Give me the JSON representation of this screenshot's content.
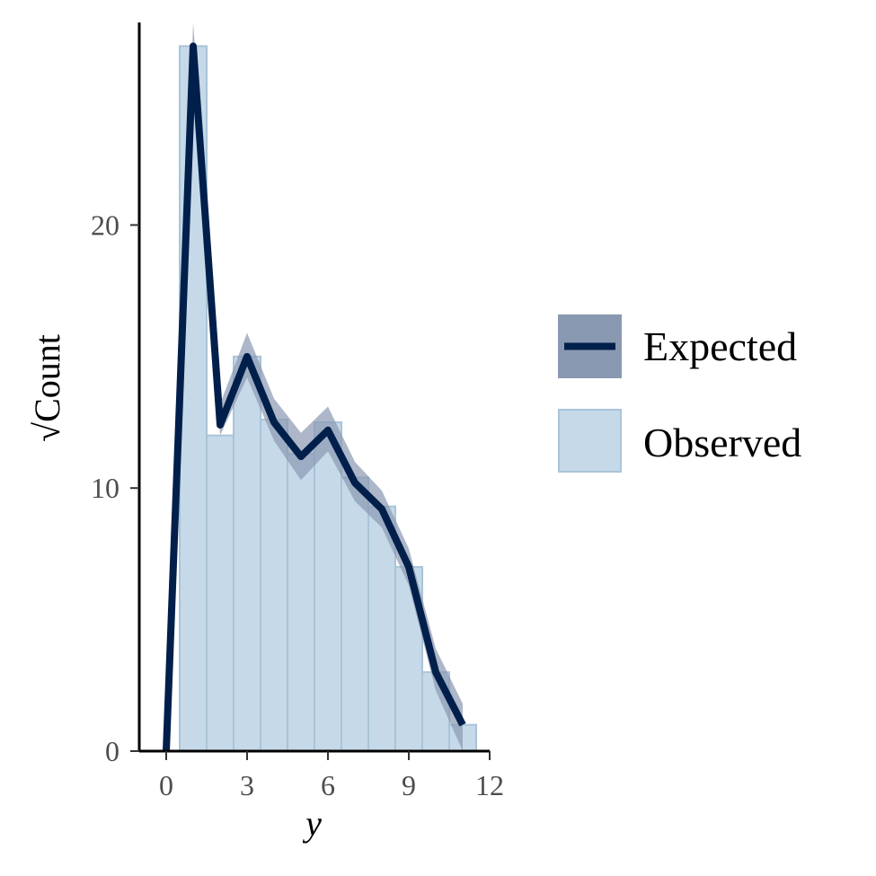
{
  "chart_data": {
    "type": "bar",
    "xlabel": "y",
    "ylabel": "√Count",
    "xlim": [
      -1.0,
      12.0
    ],
    "ylim": [
      0,
      27.7
    ],
    "x_ticks": [
      0,
      3,
      6,
      9,
      12
    ],
    "y_ticks": [
      0,
      10,
      20
    ],
    "legend_position": "right",
    "grid": false,
    "colors": {
      "observed_fill": "#c6d9e8",
      "observed_edge": "#a9c4d9",
      "expected_line": "#011f4b",
      "expected_band": "#8a99b2"
    },
    "series": [
      {
        "name": "Observed",
        "type": "bar",
        "x": [
          1,
          2,
          3,
          4,
          5,
          6,
          7,
          8,
          9,
          10,
          11
        ],
        "values": [
          26.8,
          12.0,
          15.0,
          12.6,
          11.3,
          12.5,
          10.4,
          9.3,
          7.0,
          3.0,
          1.0
        ]
      },
      {
        "name": "Expected",
        "type": "line",
        "x": [
          0,
          1,
          2,
          3,
          4,
          5,
          6,
          7,
          8,
          9,
          10,
          11
        ],
        "values": [
          0.0,
          26.8,
          12.4,
          15.0,
          12.5,
          11.2,
          12.2,
          10.2,
          9.2,
          7.0,
          3.0,
          1.0
        ],
        "lower": [
          0.0,
          26.0,
          12.0,
          14.2,
          11.8,
          10.3,
          11.4,
          9.5,
          8.5,
          6.3,
          2.3,
          0.0
        ],
        "upper": [
          0.0,
          27.7,
          13.2,
          15.9,
          13.4,
          12.1,
          13.1,
          11.0,
          9.9,
          7.7,
          3.9,
          1.8
        ]
      }
    ]
  }
}
